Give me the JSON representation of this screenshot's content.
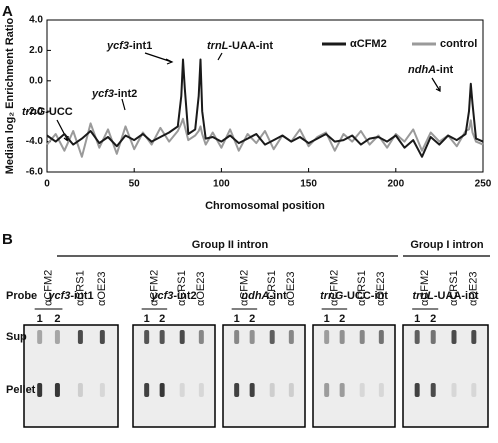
{
  "panel_labels": [
    "A",
    "B"
  ],
  "chart_data": {
    "type": "line",
    "xlabel": "Chromosomal position",
    "ylabel": "Median log₂ Enrichment Ratio",
    "x": [
      0,
      5,
      10,
      15,
      20,
      25,
      30,
      35,
      40,
      45,
      50,
      55,
      60,
      65,
      70,
      75,
      77,
      78,
      79,
      81,
      85,
      87,
      88,
      89,
      91,
      95,
      100,
      105,
      110,
      115,
      120,
      125,
      130,
      135,
      140,
      145,
      150,
      155,
      160,
      165,
      170,
      175,
      180,
      185,
      190,
      195,
      200,
      205,
      210,
      215,
      220,
      225,
      230,
      235,
      240,
      242,
      243,
      244,
      246,
      250
    ],
    "series": [
      {
        "name": "αCFM2",
        "color": "#1a1a1a",
        "values": [
          -3.6,
          -4.0,
          -3.5,
          -4.2,
          -3.8,
          -3.3,
          -4.1,
          -3.7,
          -4.3,
          -3.6,
          -3.9,
          -3.5,
          -4.0,
          -3.7,
          -3.4,
          -3.0,
          -1.0,
          1.4,
          -0.5,
          -3.5,
          -3.2,
          -1.0,
          1.4,
          -2.0,
          -3.8,
          -3.7,
          -4.0,
          -3.6,
          -4.1,
          -3.8,
          -3.5,
          -4.2,
          -3.9,
          -3.6,
          -4.0,
          -3.7,
          -4.1,
          -3.8,
          -3.5,
          -4.0,
          -3.9,
          -3.6,
          -4.2,
          -3.8,
          -3.7,
          -4.0,
          -3.6,
          -4.4,
          -3.9,
          -5.0,
          -3.7,
          -4.2,
          -3.6,
          -3.9,
          -3.5,
          -2.0,
          -0.2,
          -1.5,
          -3.8,
          -4.0
        ]
      },
      {
        "name": "control",
        "color": "#9a9a9a",
        "values": [
          -4.2,
          -3.5,
          -4.6,
          -3.3,
          -5.0,
          -2.8,
          -4.4,
          -3.2,
          -4.8,
          -3.0,
          -4.5,
          -3.4,
          -4.2,
          -3.1,
          -4.0,
          -3.3,
          -2.8,
          -2.5,
          -3.0,
          -3.9,
          -3.6,
          -3.3,
          -3.0,
          -3.5,
          -4.2,
          -3.4,
          -4.4,
          -3.2,
          -4.6,
          -3.5,
          -4.1,
          -3.3,
          -4.5,
          -3.6,
          -4.0,
          -3.2,
          -4.3,
          -3.7,
          -3.4,
          -4.6,
          -3.5,
          -4.0,
          -3.3,
          -4.2,
          -3.6,
          -4.4,
          -3.5,
          -4.0,
          -3.2,
          -4.6,
          -3.4,
          -4.0,
          -3.6,
          -4.3,
          -3.3,
          -3.2,
          -2.6,
          -3.4,
          -4.0,
          -4.2
        ]
      }
    ],
    "xlim": [
      0,
      250
    ],
    "xticks": [
      0,
      50,
      100,
      150,
      200,
      250
    ],
    "ylim": [
      -6,
      4
    ],
    "yticks": [
      {
        "value": -6,
        "label": "-6.0"
      },
      {
        "value": -4,
        "label": "-4.0"
      },
      {
        "value": -2,
        "label": "-2.0"
      },
      {
        "value": 0,
        "label": "0.0"
      },
      {
        "value": 2,
        "label": "2.0"
      },
      {
        "value": 4,
        "label": "4.0"
      }
    ],
    "legend": "upper right",
    "annotations": [
      {
        "gene": "trnG",
        "suffix": "-UCC"
      },
      {
        "gene": "ycf3",
        "suffix": "-int2"
      },
      {
        "gene": "ycf3",
        "suffix": "-int1"
      },
      {
        "gene": "trnL",
        "suffix": "-UAA-int"
      },
      {
        "gene": "ndhA",
        "suffix": "-int"
      }
    ]
  },
  "blot": {
    "groups": [
      "Group II intron",
      "Group I intron"
    ],
    "probe_label": "Probe",
    "probes": [
      {
        "gene": "ycf3",
        "suffix": "-int1"
      },
      {
        "gene": "ycf3",
        "suffix": "-int2"
      },
      {
        "gene": "ndhA",
        "suffix": "-int"
      },
      {
        "gene": "trnG",
        "suffix": "-UCC-int"
      },
      {
        "gene": "trnL",
        "suffix": "-UAA-int"
      }
    ],
    "antibodies": [
      "αCFM2",
      "αCRS1",
      "αOE23"
    ],
    "lanes": [
      "1",
      "2"
    ],
    "rows": [
      "Sup",
      "Pellet"
    ]
  }
}
